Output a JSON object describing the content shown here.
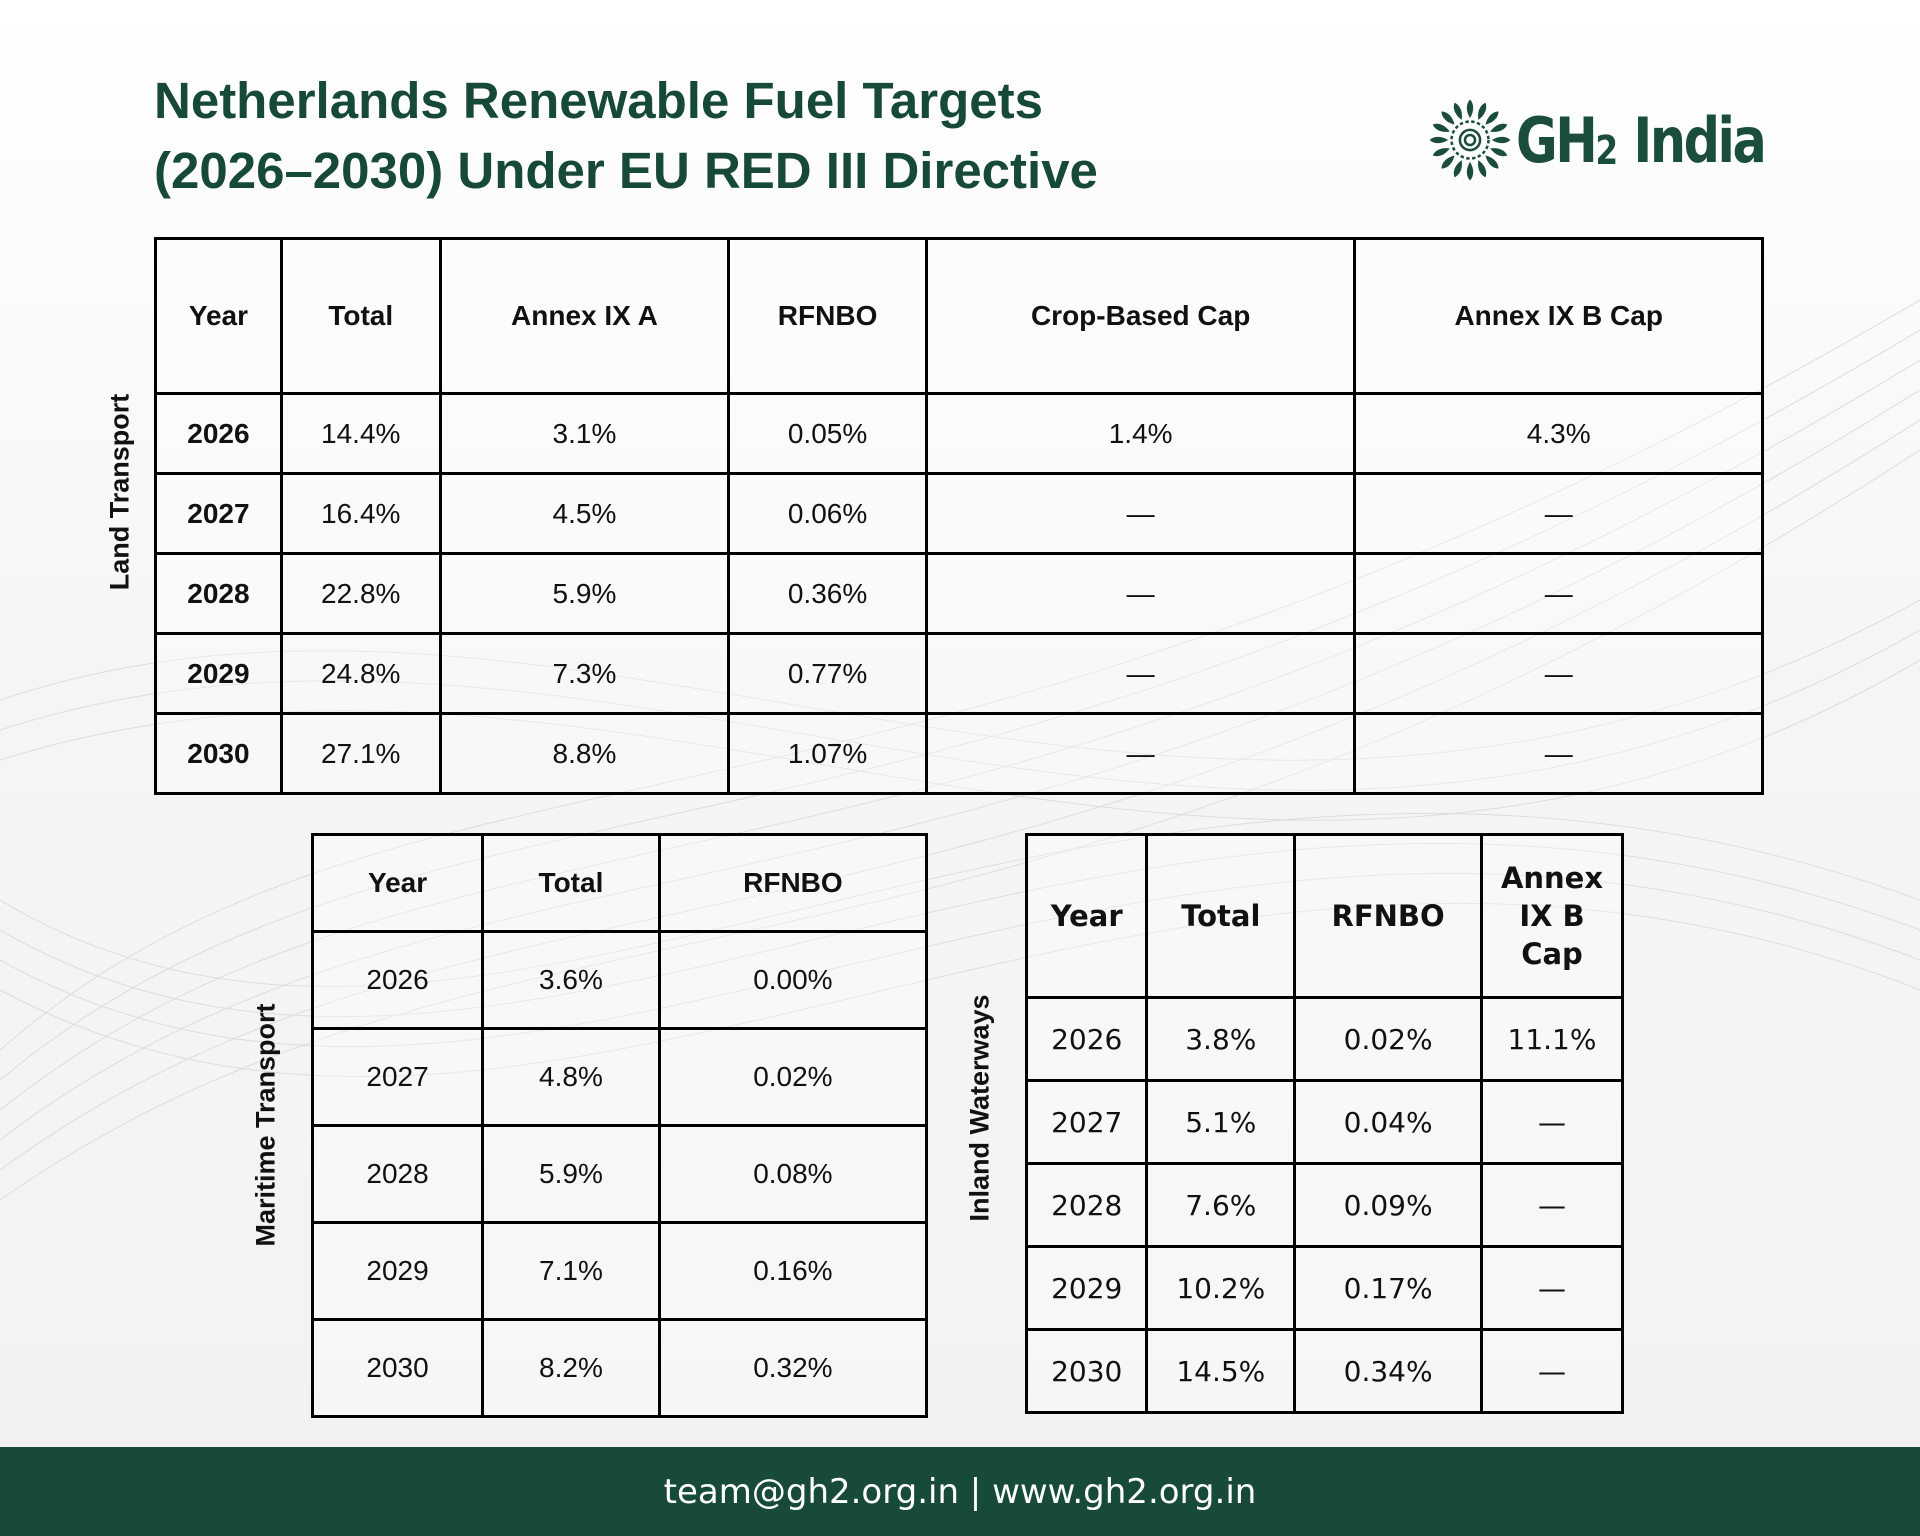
{
  "title": {
    "line1": "Netherlands Renewable Fuel Targets",
    "line2": "(2026–2030) Under EU RED III Directive"
  },
  "logo": {
    "text_main": "GH",
    "text_sub": "2",
    "text_tail": " India",
    "icon": "mandala-icon"
  },
  "colors": {
    "brand_green": "#164a36",
    "footer_bg": "#174a38"
  },
  "land": {
    "label": "Land Transport",
    "headers": [
      "Year",
      "Total",
      "Annex IX A",
      "RFNBO",
      "Crop-Based Cap",
      "Annex IX B Cap"
    ],
    "rows": [
      [
        "2026",
        "14.4%",
        "3.1%",
        "0.05%",
        "1.4%",
        "4.3%"
      ],
      [
        "2027",
        "16.4%",
        "4.5%",
        "0.06%",
        "—",
        "—"
      ],
      [
        "2028",
        "22.8%",
        "5.9%",
        "0.36%",
        "—",
        "—"
      ],
      [
        "2029",
        "24.8%",
        "7.3%",
        "0.77%",
        "—",
        "—"
      ],
      [
        "2030",
        "27.1%",
        "8.8%",
        "1.07%",
        "—",
        "—"
      ]
    ]
  },
  "maritime": {
    "label": "Maritime Transport",
    "headers": [
      "Year",
      "Total",
      "RFNBO"
    ],
    "rows": [
      [
        "2026",
        "3.6%",
        "0.00%"
      ],
      [
        "2027",
        "4.8%",
        "0.02%"
      ],
      [
        "2028",
        "5.9%",
        "0.08%"
      ],
      [
        "2029",
        "7.1%",
        "0.16%"
      ],
      [
        "2030",
        "8.2%",
        "0.32%"
      ]
    ]
  },
  "inland": {
    "label": "Inland Waterways",
    "headers": [
      "Year",
      "Total",
      "RFNBO",
      "Annex IX B Cap"
    ],
    "rows": [
      [
        "2026",
        "3.8%",
        "0.02%",
        "11.1%"
      ],
      [
        "2027",
        "5.1%",
        "0.04%",
        "—"
      ],
      [
        "2028",
        "7.6%",
        "0.09%",
        "—"
      ],
      [
        "2029",
        "10.2%",
        "0.17%",
        "—"
      ],
      [
        "2030",
        "14.5%",
        "0.34%",
        "—"
      ]
    ]
  },
  "footer": {
    "text": "team@gh2.org.in | www.gh2.org.in"
  }
}
